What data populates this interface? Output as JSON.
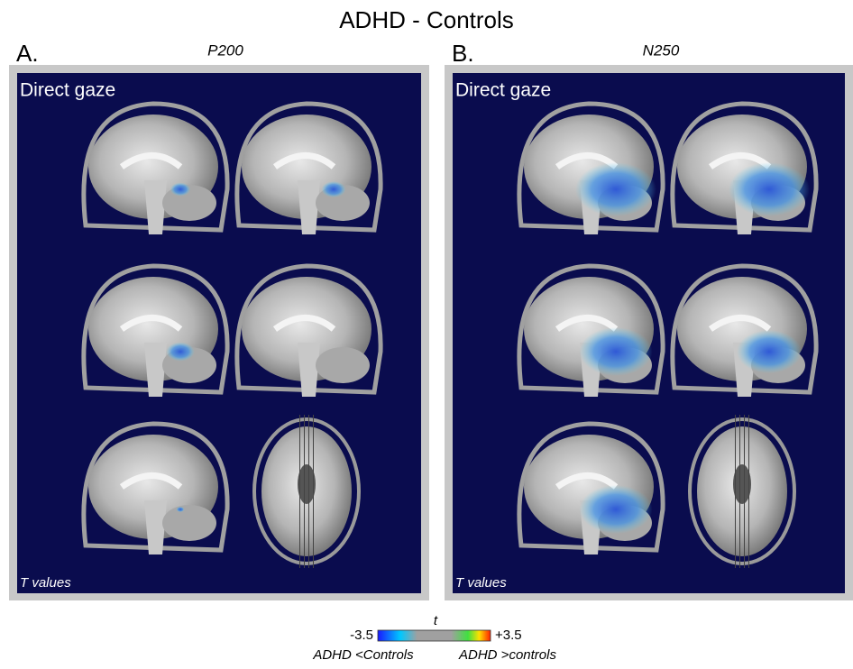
{
  "title": "ADHD - Controls",
  "panels": [
    {
      "letter": "A.",
      "component": "P200",
      "condition": "Direct gaze",
      "footer": "T values"
    },
    {
      "letter": "B.",
      "component": "N250",
      "condition": "Direct gaze",
      "footer": "T values"
    }
  ],
  "colorbar": {
    "label": "t",
    "min": "-3.5",
    "max": "+3.5",
    "left_caption": "ADHD <Controls",
    "right_caption": "ADHD >controls"
  }
}
